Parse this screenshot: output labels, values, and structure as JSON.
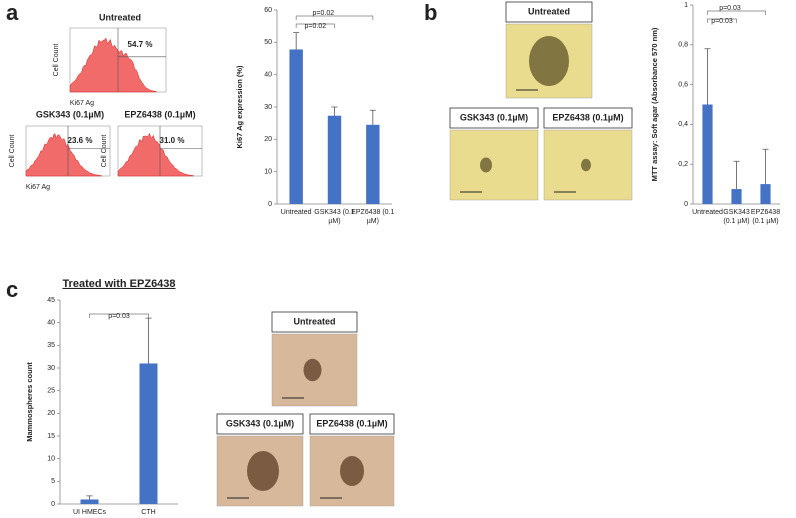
{
  "panel_labels": [
    "a",
    "b",
    "c"
  ],
  "flow": {
    "y_label": "Cell Count",
    "x_label": "Ki67 Ag",
    "samples": [
      {
        "title": "Untreated",
        "percent": "54.7 %"
      },
      {
        "title": "GSK343 (0.1µM)",
        "percent": "23.6 %"
      },
      {
        "title": "EPZ6438 (0.1µM)",
        "percent": "31.0 %"
      }
    ]
  },
  "micrographs_b": [
    "Untreated",
    "GSK343 (0.1µM)",
    "EPZ6438 (0.1µM)"
  ],
  "micrographs_c": [
    "Untreated",
    "GSK343 (0.1µM)",
    "EPZ6438 (0.1µM)"
  ],
  "chart_data": [
    {
      "type": "bar",
      "ylabel": "Ki67 Ag expression (%)",
      "categories": [
        "Untreated",
        "GSK343 (0.1 µM)",
        "EPZ6438 (0.1 µM)"
      ],
      "values": [
        47.8,
        27.3,
        24.5
      ],
      "errors": [
        5.2,
        2.7,
        4.5
      ],
      "color": "#4472c4",
      "ylim": [
        0,
        60
      ],
      "yticks": [
        0,
        10,
        20,
        30,
        40,
        50,
        60
      ],
      "annotations": [
        "p=0.02",
        "p=0.02"
      ]
    },
    {
      "type": "bar",
      "ylabel": "MTT assay: Soft agar  (Absorbance 570 nm)",
      "categories": [
        "Untreated",
        "GSK343 (0.1 µM)",
        "EPZ6438 (0.1 µM)"
      ],
      "values": [
        0.5,
        0.075,
        0.1
      ],
      "errors": [
        0.28,
        0.14,
        0.175
      ],
      "color": "#4472c4",
      "ylim": [
        0,
        1
      ],
      "yticks": [
        0,
        {
          "value": 0.2,
          "label": "0,2"
        },
        {
          "value": 0.4,
          "label": "0,4"
        },
        {
          "value": 0.6,
          "label": "0,6"
        },
        {
          "value": 0.8,
          "label": "0,8"
        },
        1
      ],
      "annotations": [
        "p=0.03",
        "p=0.03"
      ]
    },
    {
      "type": "bar",
      "title": "Treated with EPZ6438",
      "ylabel": "Mammospheres count",
      "categories": [
        "UI HMECs",
        "CTH"
      ],
      "values": [
        1,
        31
      ],
      "errors": [
        0.8,
        10
      ],
      "color": "#4472c4",
      "ylim": [
        0,
        45
      ],
      "yticks": [
        0,
        5,
        10,
        15,
        20,
        25,
        30,
        35,
        40,
        45
      ],
      "annotations": [
        "p=0.03"
      ]
    }
  ]
}
